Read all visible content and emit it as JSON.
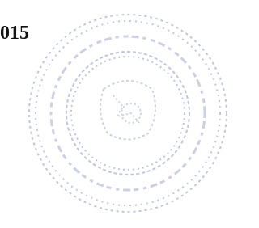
{
  "document": {
    "text": "015"
  }
}
